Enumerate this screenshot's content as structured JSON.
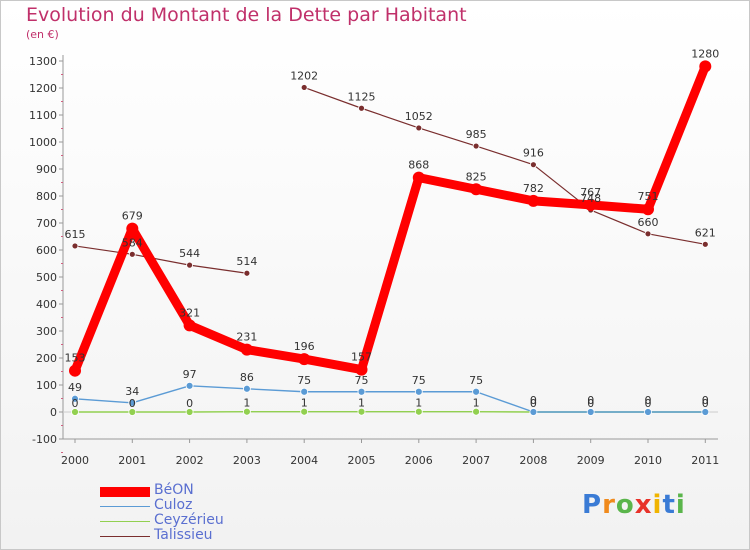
{
  "chart_data": {
    "type": "line",
    "title": "Evolution du Montant de la Dette par Habitant",
    "unit_label": "(en €)",
    "xlabel": "",
    "ylabel": "",
    "ylim": [
      -100,
      1300
    ],
    "yticks": [
      -100,
      0,
      100,
      200,
      300,
      400,
      500,
      600,
      700,
      800,
      900,
      1000,
      1100,
      1200,
      1300
    ],
    "x": [
      "2000",
      "2001",
      "2002",
      "2003",
      "2004",
      "2005",
      "2006",
      "2007",
      "2008",
      "2009",
      "2010",
      "2011"
    ],
    "series": [
      {
        "name": "BéON",
        "color": "#ff0000",
        "values": [
          153,
          679,
          321,
          231,
          196,
          157,
          868,
          825,
          782,
          767,
          751,
          1280
        ],
        "labels": [
          "153",
          "679",
          "321",
          "231",
          "196",
          "157",
          "868",
          "825",
          "782",
          "767",
          "751",
          "1280"
        ]
      },
      {
        "name": "Culoz",
        "color": "#5b9bd5",
        "values": [
          49,
          34,
          97,
          86,
          75,
          75,
          75,
          75,
          0,
          0,
          0,
          0
        ],
        "labels": [
          "49",
          "34",
          "97",
          "86",
          "75",
          "75",
          "75",
          "75",
          "0",
          "0",
          "0",
          "0"
        ]
      },
      {
        "name": "Ceyzérieu",
        "color": "#92d050",
        "values": [
          0,
          0,
          0,
          1,
          1,
          1,
          1,
          1,
          0,
          0,
          0,
          0
        ],
        "labels": [
          "0",
          "0",
          "0",
          "1",
          "1",
          "1",
          "1",
          "1",
          "0",
          "0",
          "0",
          "0"
        ]
      },
      {
        "name": "Talissieu",
        "color": "#7a2e2e",
        "values": [
          615,
          584,
          544,
          514,
          1202,
          1125,
          1052,
          985,
          916,
          748,
          660,
          621
        ],
        "labels": [
          "615",
          "584",
          "544",
          "514",
          "1202",
          "1125",
          "1052",
          "985",
          "916",
          "748",
          "660",
          "621"
        ],
        "gaps_after": [
          3
        ]
      }
    ],
    "legend_position": "bottom-left",
    "grid": false
  },
  "logo": {
    "text": "Proxiti",
    "letters": [
      "P",
      "r",
      "o",
      "x",
      "i",
      "t",
      "i"
    ],
    "colors": [
      "#3a7bd5",
      "#f08a1c",
      "#5ab54b",
      "#e8322a",
      "#f0b400",
      "#3a7bd5",
      "#5ab54b"
    ]
  }
}
